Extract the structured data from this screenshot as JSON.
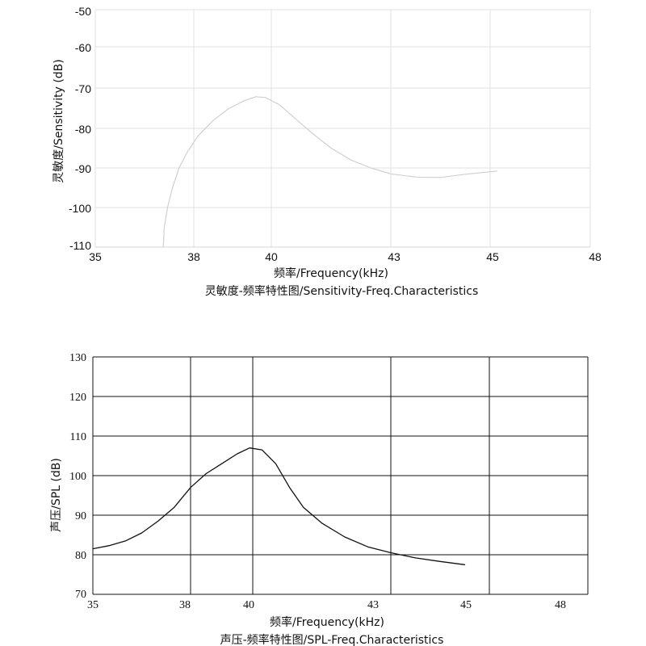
{
  "chart_data": [
    {
      "type": "line",
      "xlabel": "频率/Frequency(kHz)",
      "ylabel": "灵敏度/Sensitivity (dB)",
      "caption": "灵敏度-频率特性图/Sensitivity-Freq.Characteristics",
      "x_ticks": [
        "35",
        "38",
        "40",
        "43",
        "45",
        "48"
      ],
      "y_ticks": [
        "-50",
        "-60",
        "-70",
        "-80",
        "-90",
        "-100",
        "-110"
      ],
      "ylim": [
        -110,
        -50
      ],
      "grid": true,
      "line_color": "#d0d0d0",
      "series": [
        {
          "points": [
            [
              37.07,
              -110
            ],
            [
              37.1,
              -105
            ],
            [
              37.2,
              -100
            ],
            [
              37.35,
              -95
            ],
            [
              37.55,
              -90
            ],
            [
              37.8,
              -86
            ],
            [
              38.1,
              -82
            ],
            [
              38.5,
              -78
            ],
            [
              38.9,
              -75
            ],
            [
              39.3,
              -73
            ],
            [
              39.6,
              -72
            ],
            [
              39.85,
              -72.2
            ],
            [
              40.2,
              -74
            ],
            [
              40.6,
              -77.5
            ],
            [
              41.0,
              -81
            ],
            [
              41.5,
              -85
            ],
            [
              42.0,
              -88
            ],
            [
              42.5,
              -90
            ],
            [
              43.0,
              -91.5
            ],
            [
              43.5,
              -92.3
            ],
            [
              44.0,
              -92.4
            ],
            [
              44.5,
              -91.6
            ],
            [
              45.2,
              -90.8
            ]
          ]
        }
      ]
    },
    {
      "type": "line",
      "xlabel": "频率/Frequency(kHz)",
      "ylabel": "声压/SPL (dB)",
      "caption": "声压-频率特性图/SPL-Freq.Characteristics",
      "x_ticks": [
        "35",
        "38",
        "40",
        "43",
        "45",
        "48"
      ],
      "y_ticks": [
        "130",
        "120",
        "110",
        "100",
        "90",
        "80",
        "70"
      ],
      "ylim": [
        70,
        130
      ],
      "grid": true,
      "line_color": "#111111",
      "series": [
        {
          "points": [
            [
              35.0,
              81.5
            ],
            [
              35.5,
              82.3
            ],
            [
              36.0,
              83.5
            ],
            [
              36.5,
              85.5
            ],
            [
              37.0,
              88.5
            ],
            [
              37.5,
              92
            ],
            [
              38.0,
              97
            ],
            [
              38.5,
              100.5
            ],
            [
              39.0,
              103
            ],
            [
              39.5,
              105.5
            ],
            [
              39.9,
              107
            ],
            [
              40.2,
              106.5
            ],
            [
              40.5,
              103
            ],
            [
              40.8,
              97
            ],
            [
              41.1,
              92
            ],
            [
              41.5,
              88
            ],
            [
              42.0,
              84.5
            ],
            [
              42.5,
              82
            ],
            [
              43.0,
              80.5
            ],
            [
              43.5,
              79.2
            ],
            [
              44.0,
              78.3
            ],
            [
              44.5,
              77.5
            ]
          ]
        }
      ]
    }
  ]
}
